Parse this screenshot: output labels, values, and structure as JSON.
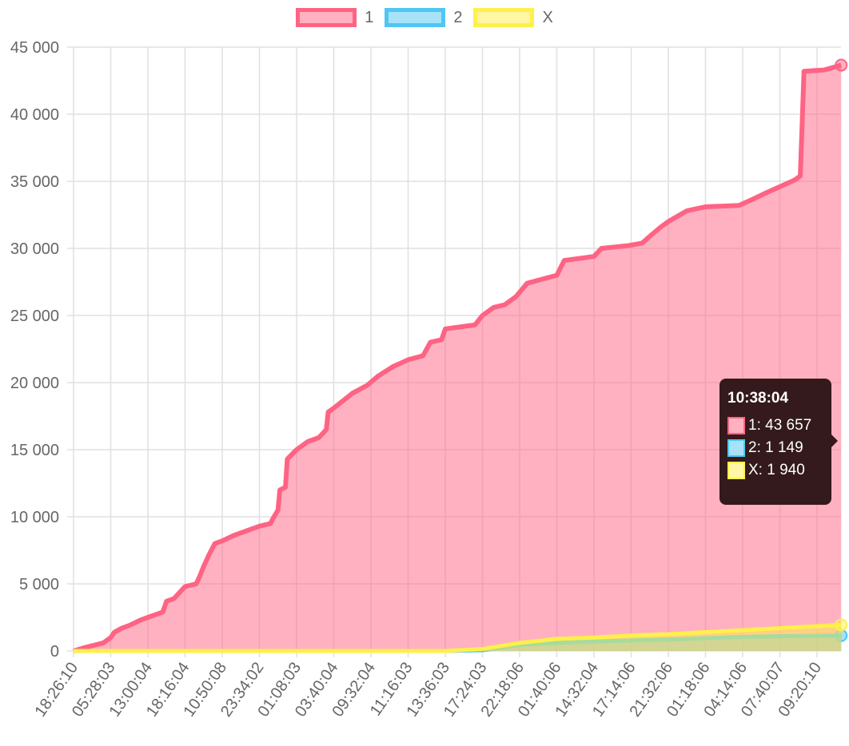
{
  "chart_data": {
    "type": "line",
    "title": "",
    "xlabel": "",
    "ylabel": "",
    "ylim": [
      0,
      45000
    ],
    "yticks": [
      "0",
      "5 000",
      "10 000",
      "15 000",
      "20 000",
      "25 000",
      "30 000",
      "35 000",
      "40 000",
      "45 000"
    ],
    "ytick_values": [
      0,
      5000,
      10000,
      15000,
      20000,
      25000,
      30000,
      35000,
      40000,
      45000
    ],
    "categories": [
      "18:26:10",
      "05:28:03",
      "13:00:04",
      "18:16:04",
      "10:50:08",
      "23:34:02",
      "01:08:03",
      "03:40:04",
      "09:32:04",
      "11:16:03",
      "13:36:03",
      "17:24:03",
      "22:18:06",
      "01:40:06",
      "14:32:04",
      "17:14:06",
      "21:32:06",
      "01:18:06",
      "04:14:06",
      "07:40:07",
      "09:20:10"
    ],
    "x_note": "x in category-index units; last point just beyond final tick",
    "grid": true,
    "legend_position": "top",
    "series": [
      {
        "name": "1",
        "color": "#ff6384",
        "fill": "rgba(255,99,132,0.5)",
        "points": [
          [
            0,
            0
          ],
          [
            0.3,
            250
          ],
          [
            0.8,
            600
          ],
          [
            1,
            1000
          ],
          [
            1.1,
            1400
          ],
          [
            1.3,
            1700
          ],
          [
            1.5,
            1900
          ],
          [
            1.8,
            2300
          ],
          [
            2,
            2500
          ],
          [
            2.4,
            2900
          ],
          [
            2.5,
            3700
          ],
          [
            2.7,
            3900
          ],
          [
            3,
            4800
          ],
          [
            3.3,
            5000
          ],
          [
            3.4,
            5600
          ],
          [
            3.5,
            6300
          ],
          [
            3.65,
            7200
          ],
          [
            3.8,
            8000
          ],
          [
            4,
            8200
          ],
          [
            4.3,
            8600
          ],
          [
            4.7,
            9000
          ],
          [
            5,
            9300
          ],
          [
            5.3,
            9500
          ],
          [
            5.35,
            9800
          ],
          [
            5.5,
            10500
          ],
          [
            5.55,
            12000
          ],
          [
            5.7,
            12200
          ],
          [
            5.75,
            14300
          ],
          [
            6,
            15000
          ],
          [
            6.3,
            15600
          ],
          [
            6.6,
            15900
          ],
          [
            6.8,
            16500
          ],
          [
            6.85,
            17800
          ],
          [
            7,
            18100
          ],
          [
            7.5,
            19200
          ],
          [
            7.9,
            19800
          ],
          [
            8.2,
            20500
          ],
          [
            8.6,
            21200
          ],
          [
            9,
            21700
          ],
          [
            9.4,
            22000
          ],
          [
            9.6,
            23000
          ],
          [
            9.9,
            23200
          ],
          [
            10,
            24000
          ],
          [
            10.8,
            24300
          ],
          [
            11,
            25000
          ],
          [
            11.3,
            25600
          ],
          [
            11.6,
            25800
          ],
          [
            11.9,
            26400
          ],
          [
            12.2,
            27400
          ],
          [
            12.6,
            27700
          ],
          [
            13,
            28000
          ],
          [
            13.2,
            29100
          ],
          [
            14,
            29400
          ],
          [
            14.2,
            30000
          ],
          [
            14.9,
            30200
          ],
          [
            15.3,
            30400
          ],
          [
            15.5,
            30900
          ],
          [
            15.8,
            31600
          ],
          [
            16,
            32000
          ],
          [
            16.5,
            32800
          ],
          [
            17,
            33100
          ],
          [
            17.9,
            33200
          ],
          [
            18.3,
            33700
          ],
          [
            18.6,
            34100
          ],
          [
            19,
            34600
          ],
          [
            19.4,
            35100
          ],
          [
            19.55,
            35400
          ],
          [
            19.65,
            43200
          ],
          [
            20.2,
            43300
          ],
          [
            20.65,
            43657
          ]
        ]
      },
      {
        "name": "2",
        "color": "#4fc6f3",
        "fill": "rgba(79,198,243,0.5)",
        "points": [
          [
            0,
            0
          ],
          [
            10,
            0
          ],
          [
            11,
            50
          ],
          [
            12,
            450
          ],
          [
            13,
            600
          ],
          [
            14,
            700
          ],
          [
            15,
            780
          ],
          [
            16,
            850
          ],
          [
            17,
            950
          ],
          [
            18,
            1050
          ],
          [
            19,
            1100
          ],
          [
            20.65,
            1149
          ]
        ]
      },
      {
        "name": "X",
        "color": "#fff04a",
        "fill": "rgba(255,240,74,0.5)",
        "points": [
          [
            0,
            0
          ],
          [
            10,
            0
          ],
          [
            11,
            150
          ],
          [
            12,
            600
          ],
          [
            13,
            900
          ],
          [
            14,
            1000
          ],
          [
            15,
            1150
          ],
          [
            16,
            1250
          ],
          [
            17,
            1400
          ],
          [
            18,
            1550
          ],
          [
            19,
            1700
          ],
          [
            20.65,
            1940
          ]
        ]
      }
    ],
    "tooltip": {
      "title": "10:38:04",
      "rows": [
        "1: 43 657",
        "2: 1 149",
        "X: 1 940"
      ]
    }
  }
}
